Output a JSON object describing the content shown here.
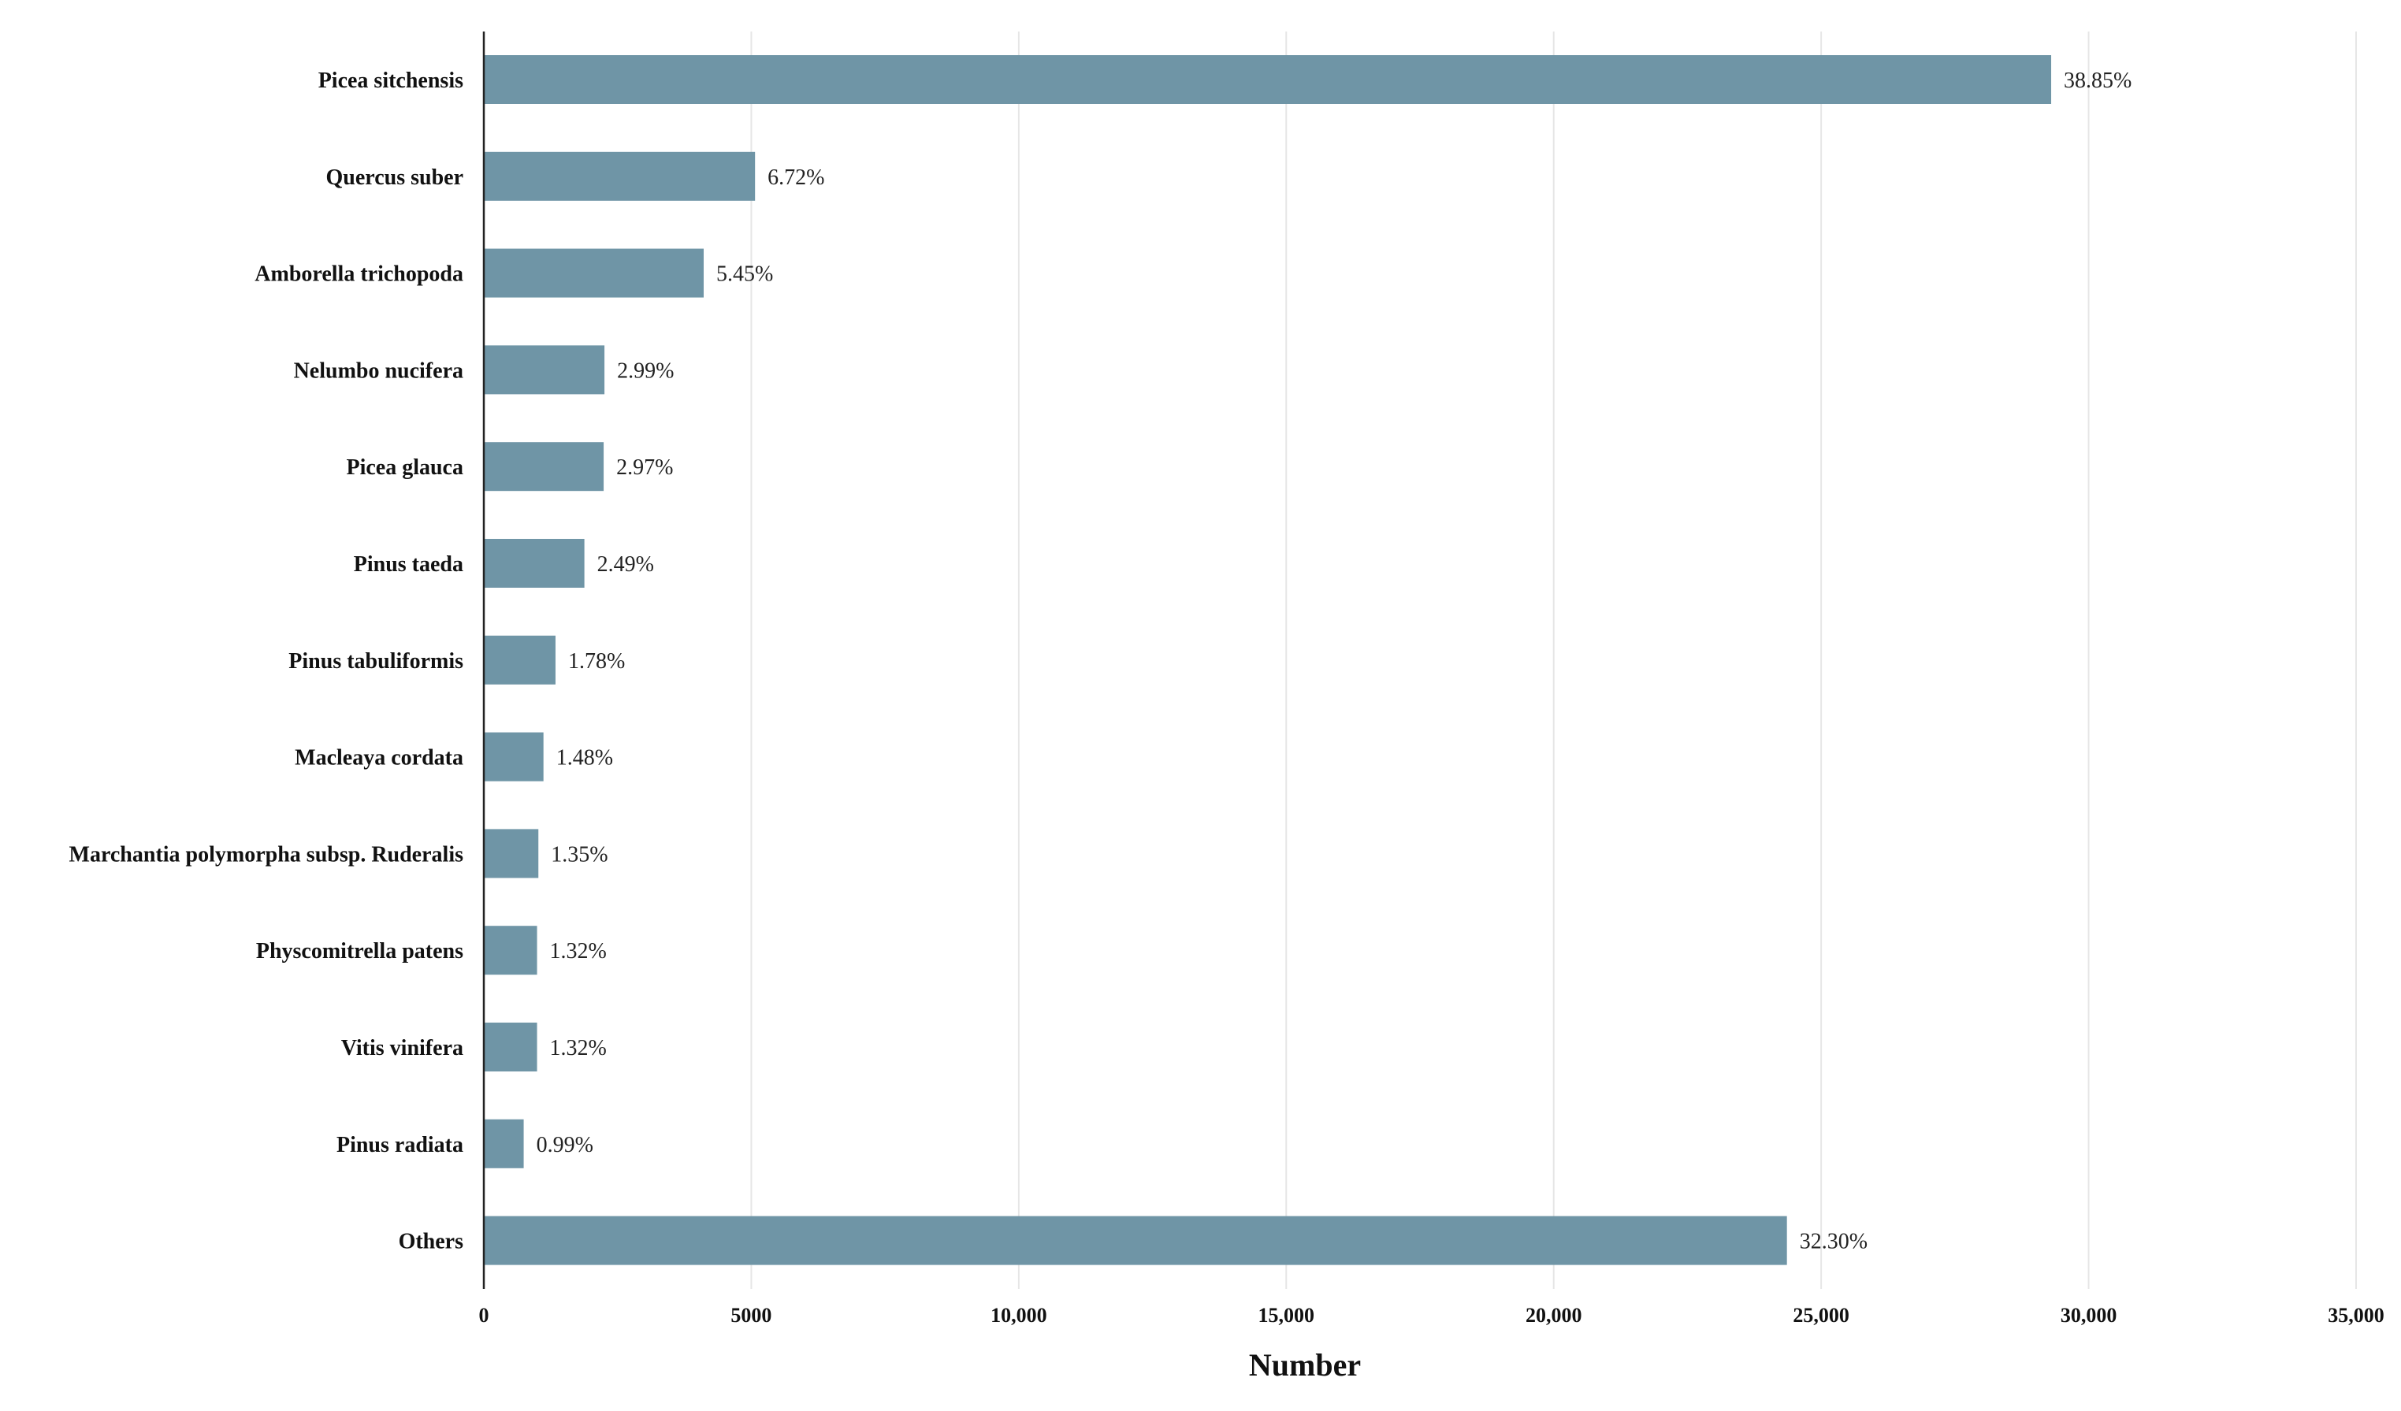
{
  "chart_data": {
    "type": "bar",
    "orientation": "horizontal",
    "categories": [
      "Picea sitchensis",
      "Quercus suber",
      "Amborella trichopoda",
      "Nelumbo nucifera",
      "Picea glauca",
      "Pinus taeda",
      "Pinus tabuliformis",
      "Macleaya cordata",
      "Marchantia polymorpha subsp. Ruderalis",
      "Physcomitrella patens",
      "Vitis vinifera",
      "Pinus radiata",
      "Others"
    ],
    "values": [
      29300,
      5070,
      4110,
      2255,
      2240,
      1880,
      1340,
      1115,
      1020,
      995,
      995,
      745,
      24360
    ],
    "data_labels": [
      "38.85%",
      "6.72%",
      "5.45%",
      "2.99%",
      "2.97%",
      "2.49%",
      "1.78%",
      "1.48%",
      "1.35%",
      "1.32%",
      "1.32%",
      "0.99%",
      "32.30%"
    ],
    "xlabel": "Number",
    "ylabel": "",
    "xlim": [
      0,
      35000
    ],
    "x_ticks": [
      0,
      5000,
      10000,
      15000,
      20000,
      25000,
      30000,
      35000
    ],
    "x_tick_labels": [
      "0",
      "5000",
      "10,000",
      "15,000",
      "20,000",
      "25,000",
      "30,000",
      "35,000"
    ],
    "grid": "vertical",
    "bar_color": "#6f95a6"
  }
}
